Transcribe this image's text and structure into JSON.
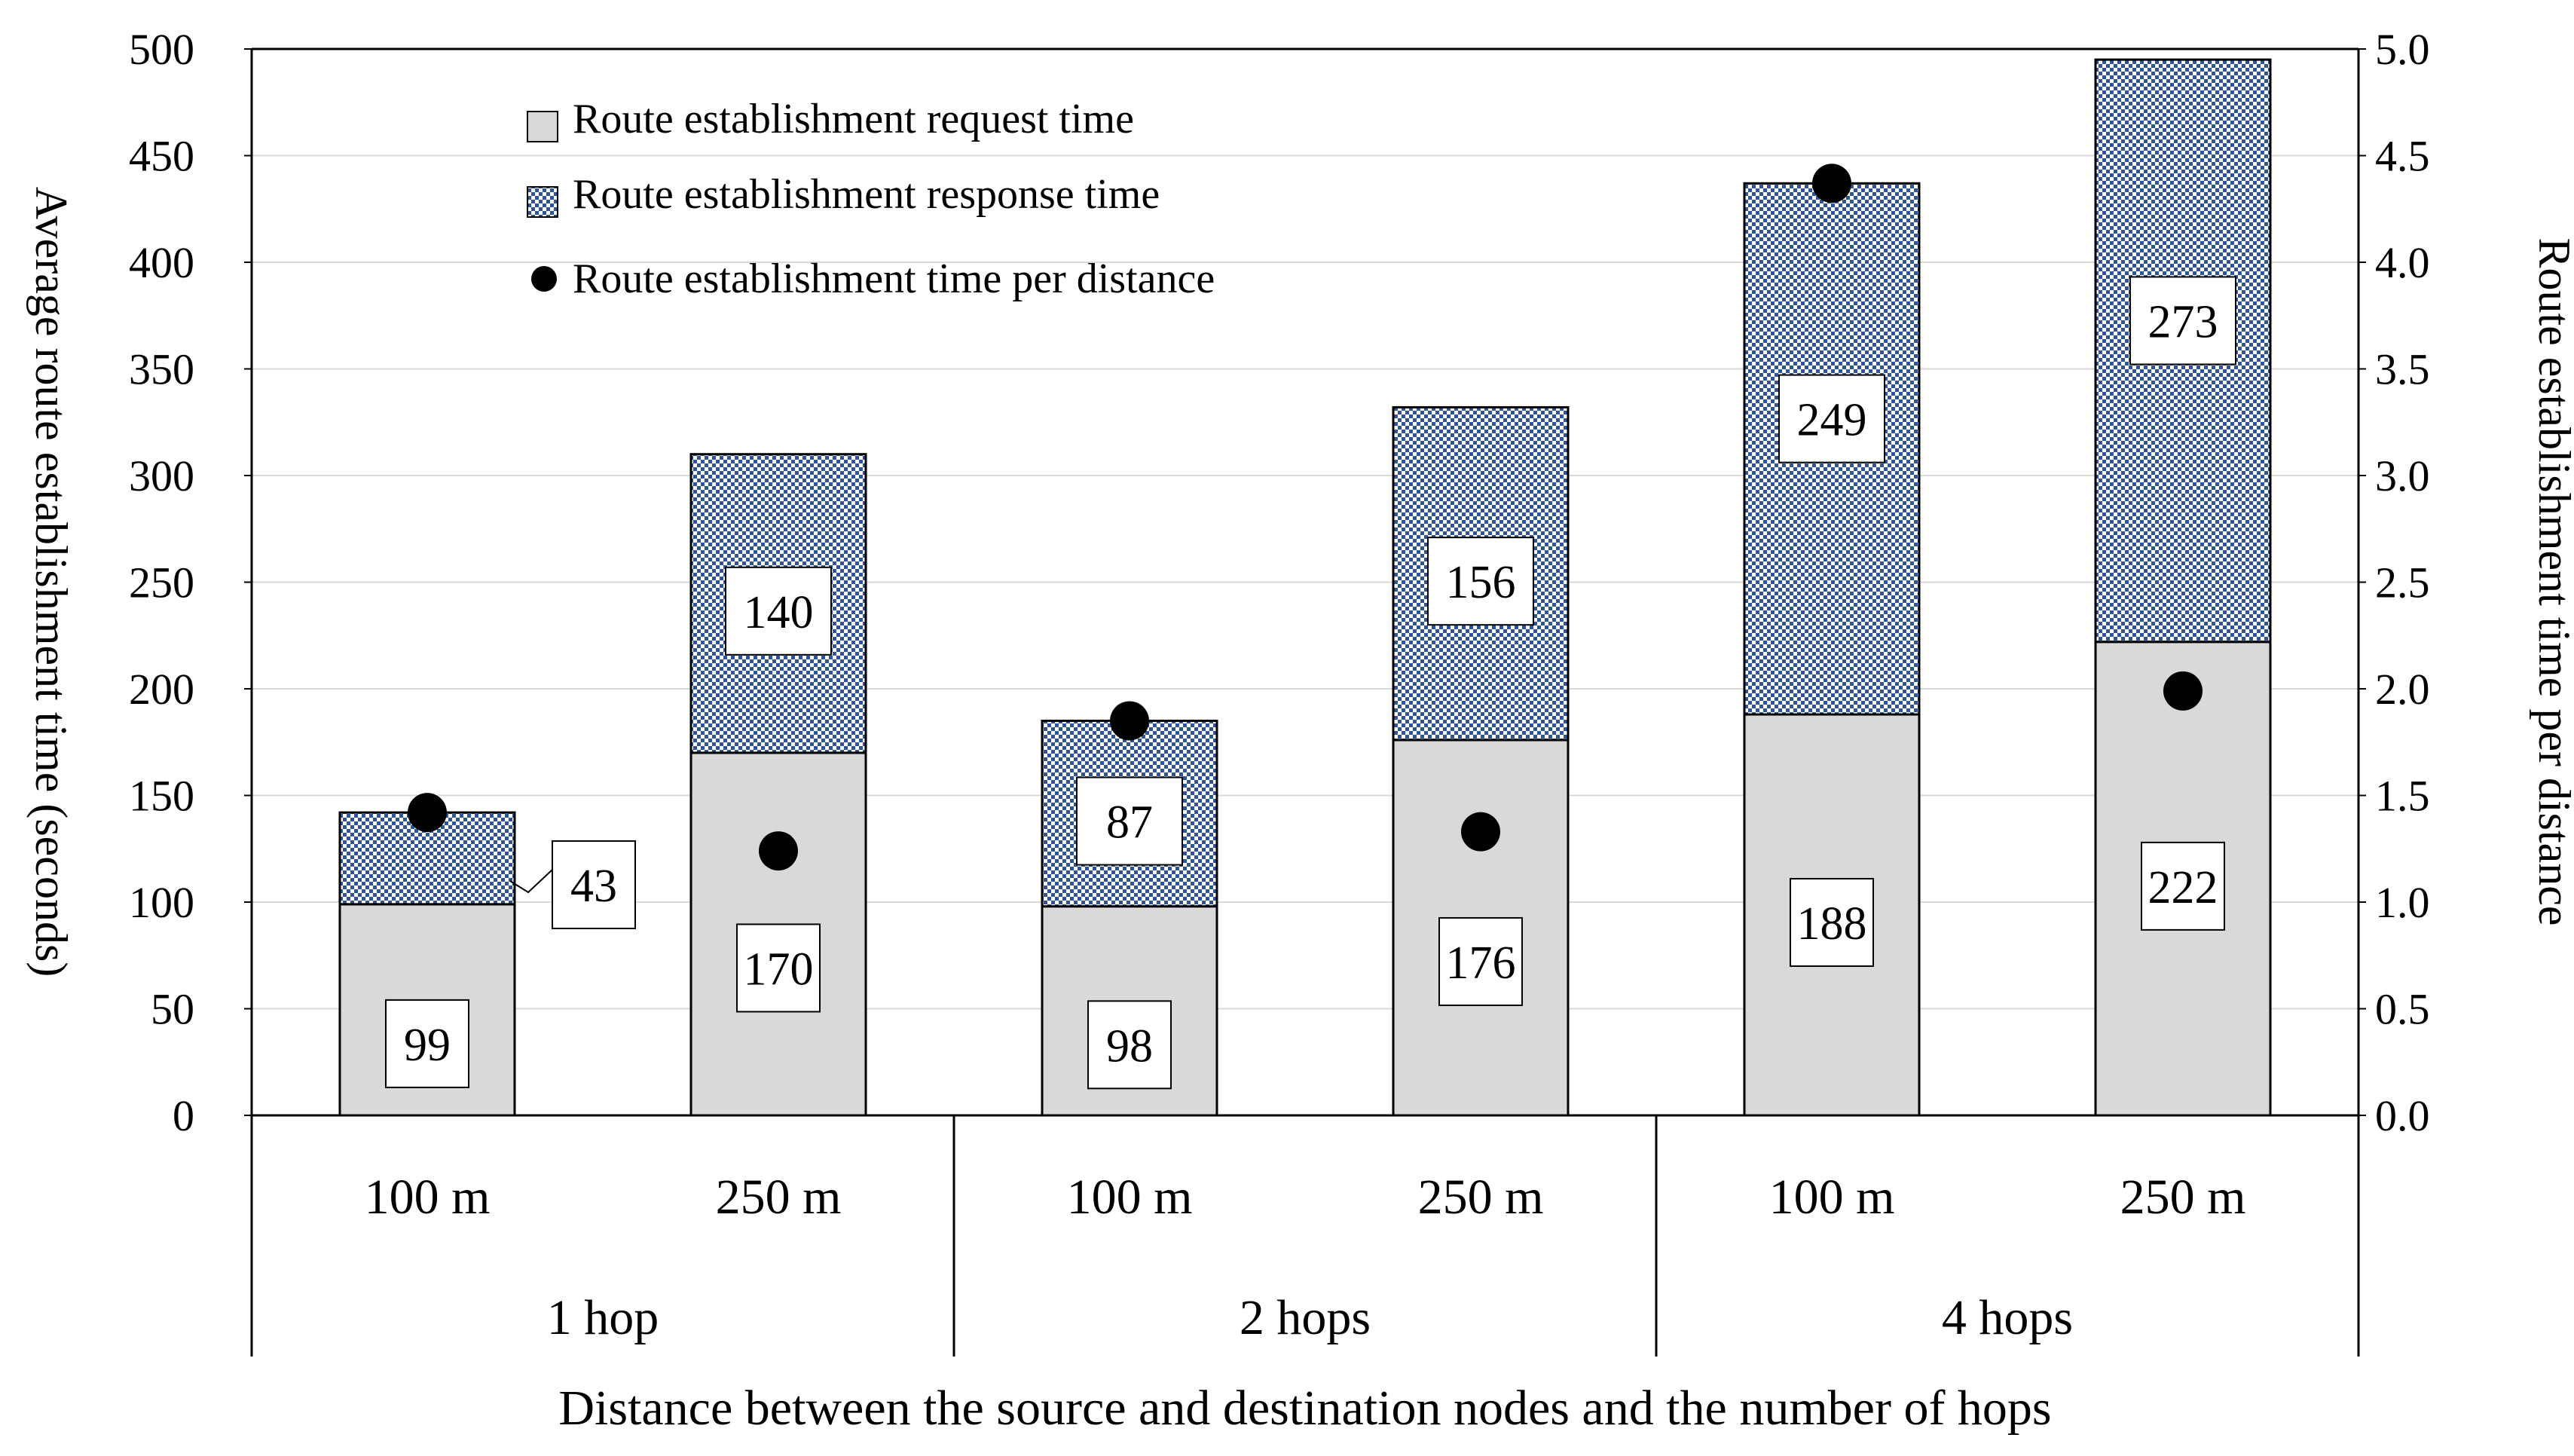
{
  "chart_data": {
    "type": "bar",
    "stacked": true,
    "groups": [
      {
        "label": "1 hop",
        "categories": [
          "100 m",
          "250 m"
        ]
      },
      {
        "label": "2 hops",
        "categories": [
          "100 m",
          "250 m"
        ]
      },
      {
        "label": "4 hops",
        "categories": [
          "100 m",
          "250 m"
        ]
      }
    ],
    "categories": [
      "100 m",
      "250 m",
      "100 m",
      "250 m",
      "100 m",
      "250 m"
    ],
    "series": [
      {
        "name": "Route establishment request time",
        "type": "bar",
        "axis": "left",
        "color": "#d9d9d9",
        "values": [
          99,
          170,
          98,
          176,
          188,
          222
        ]
      },
      {
        "name": "Route establishment response time",
        "type": "bar",
        "axis": "left",
        "color": "#9dc3e6",
        "pattern": "checker",
        "values": [
          43,
          140,
          87,
          156,
          249,
          273
        ]
      },
      {
        "name": "Route establishment time per distance",
        "type": "scatter",
        "axis": "right",
        "color": "#000000",
        "values": [
          1.42,
          1.24,
          1.85,
          1.33,
          4.37,
          1.99
        ]
      }
    ],
    "xlabel": "Distance between the source and destination nodes and the number of hops",
    "ylabel": "Average route establishment time (seconds)",
    "y2label": "Route establishment time per distance",
    "ylim": [
      0,
      500
    ],
    "y2lim": [
      0,
      5.0
    ],
    "yticks": [
      "0",
      "50",
      "100",
      "150",
      "200",
      "250",
      "300",
      "350",
      "400",
      "450",
      "500"
    ],
    "y2ticks": [
      "0.0",
      "0.5",
      "1.0",
      "1.5",
      "2.0",
      "2.5",
      "3.0",
      "3.5",
      "4.0",
      "4.5",
      "5.0"
    ],
    "grid": true,
    "legend": "top-left"
  }
}
